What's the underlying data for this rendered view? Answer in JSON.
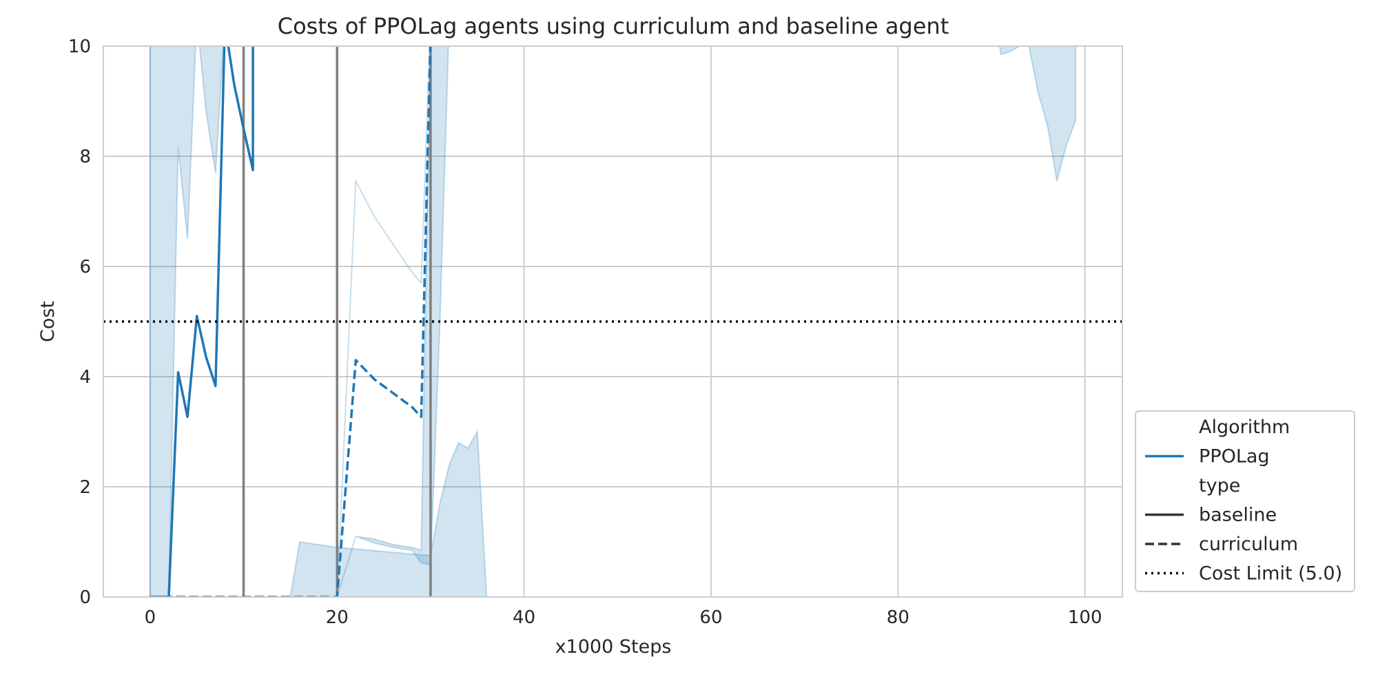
{
  "chart_data": {
    "type": "line",
    "title": "Costs of PPOLag agents using curriculum and baseline agent",
    "xlabel": "x1000 Steps",
    "ylabel": "Cost",
    "xlim": [
      -5,
      104
    ],
    "ylim": [
      0,
      10
    ],
    "x_ticks": [
      0,
      20,
      40,
      60,
      80,
      100
    ],
    "y_ticks": [
      0,
      2,
      4,
      6,
      8,
      10
    ],
    "grid": true,
    "legend_position": "lower-right-outside",
    "colors": {
      "ppolag": "#1f77b4",
      "band": "#1f77b4",
      "vline": "#7f7f7f",
      "limit": "#000000",
      "grid": "#cccccc",
      "legend_dark": "#333333"
    },
    "cost_limit": 5.0,
    "vertical_lines_x": [
      10,
      20,
      30
    ],
    "series": [
      {
        "name": "baseline",
        "algorithm": "PPOLag",
        "dash": "solid",
        "x": [
          0,
          2,
          3,
          4,
          5,
          6,
          7,
          8,
          9,
          10,
          11,
          11,
          12
        ],
        "y": [
          0,
          0,
          4.08,
          3.27,
          5.1,
          4.35,
          3.83,
          10.4,
          9.3,
          8.5,
          7.75,
          10.6,
          10.6
        ],
        "band_x": [
          0,
          2,
          3,
          4,
          5,
          6,
          7,
          8,
          10,
          11,
          12,
          20,
          30,
          31,
          32,
          33,
          34,
          35,
          36,
          36,
          35,
          34,
          33,
          32,
          31,
          30,
          20,
          16,
          15,
          0
        ],
        "band_lower": [
          0,
          0,
          0,
          0,
          0,
          0,
          0,
          0,
          0,
          0,
          0,
          0,
          0,
          0,
          0,
          0,
          0,
          0,
          0,
          0,
          3.0,
          2.7,
          2.8,
          2.4,
          1.7,
          0.75,
          0.9,
          1.0,
          0,
          0
        ],
        "band_upper": [
          0,
          0,
          8.17,
          6.5,
          10.5,
          8.8,
          7.7,
          10.5,
          10.5,
          10.5,
          10.5,
          10.5,
          10.5,
          10.5,
          10.5,
          10.5,
          10.5,
          10.5,
          10.5,
          10.5,
          10.5,
          10.5,
          10.5,
          10.5,
          10.5,
          10.5,
          10.5,
          10.5,
          10.5,
          10.5
        ]
      },
      {
        "name": "curriculum",
        "algorithm": "PPOLag",
        "dash": "dashed",
        "x": [
          0,
          20,
          22,
          24,
          26,
          28,
          29,
          30,
          31
        ],
        "y": [
          0,
          0,
          4.3,
          3.95,
          3.7,
          3.45,
          3.27,
          10.2,
          10.6
        ],
        "band_x": [
          20,
          22,
          24,
          26,
          28,
          29,
          30,
          31,
          32,
          31,
          30,
          29,
          28,
          26,
          24,
          22,
          20
        ],
        "band_lower": [
          0,
          1.1,
          0.98,
          0.9,
          0.85,
          0.62,
          0.58,
          5.0,
          10.5,
          10.5,
          10.5,
          0.85,
          0.9,
          0.95,
          1.05,
          1.1,
          0
        ],
        "band_upper": [
          0,
          7.55,
          6.9,
          6.4,
          5.9,
          5.7,
          10.5,
          10.5,
          10.5,
          10.5,
          10.5,
          5.7,
          5.9,
          6.4,
          6.9,
          7.55,
          0
        ]
      },
      {
        "name": "baseline-late-band",
        "algorithm": "PPOLag",
        "band_only": true,
        "band_x": [
          90.5,
          91,
          92,
          93,
          94,
          95,
          96,
          97,
          98,
          99,
          99,
          90.5
        ],
        "band_lower": [
          10.5,
          9.85,
          9.9,
          10.0,
          10.0,
          9.15,
          8.55,
          7.55,
          8.2,
          8.65,
          10.5,
          10.5
        ],
        "band_upper": [
          10.5,
          10.5,
          10.5,
          10.5,
          10.5,
          10.5,
          10.5,
          10.5,
          10.5,
          10.5,
          10.5,
          10.5
        ]
      }
    ],
    "legend": {
      "entries": [
        {
          "label": "Algorithm",
          "style": "header"
        },
        {
          "label": "PPOLag",
          "style": "color"
        },
        {
          "label": "type",
          "style": "header"
        },
        {
          "label": "baseline",
          "style": "solid"
        },
        {
          "label": "curriculum",
          "style": "dashed"
        },
        {
          "label": "Cost Limit (5.0)",
          "style": "dotted"
        }
      ]
    }
  }
}
